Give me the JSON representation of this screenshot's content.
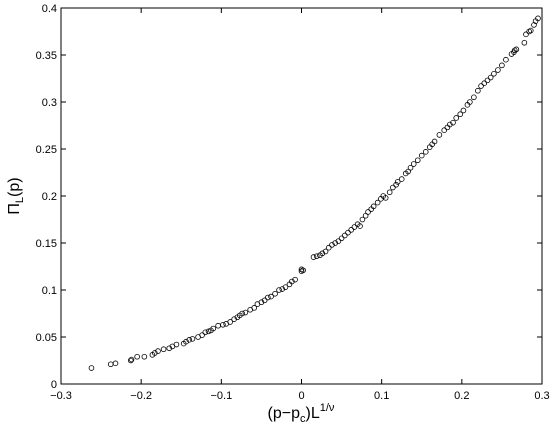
{
  "chart_data": {
    "type": "scatter",
    "xlabel": {
      "main": "(p−p",
      "sub": "c",
      "mid": ")L",
      "sup": "1/ν"
    },
    "ylabel": {
      "main": "Π",
      "sub": "L",
      "tail": "(p)"
    },
    "xlim": [
      -0.3,
      0.3
    ],
    "ylim": [
      0,
      0.4
    ],
    "xticks": [
      -0.3,
      -0.2,
      -0.1,
      0,
      0.1,
      0.2,
      0.3
    ],
    "xtick_labels": [
      "−0.3",
      "−0.2",
      "−0.1",
      "0",
      "0.1",
      "0.2",
      "0.3"
    ],
    "yticks": [
      0,
      0.05,
      0.1,
      0.15,
      0.2,
      0.25,
      0.3,
      0.35,
      0.4
    ],
    "ytick_labels": [
      "0",
      "0.05",
      "0.1",
      "0.15",
      "0.2",
      "0.25",
      "0.3",
      "0.35",
      "0.4"
    ],
    "grid": false,
    "marker": "open-circle",
    "points": [
      [
        -0.262,
        0.017
      ],
      [
        -0.238,
        0.021
      ],
      [
        -0.232,
        0.022
      ],
      [
        -0.213,
        0.025
      ],
      [
        -0.212,
        0.026
      ],
      [
        -0.205,
        0.029
      ],
      [
        -0.196,
        0.029
      ],
      [
        -0.186,
        0.031
      ],
      [
        -0.183,
        0.033
      ],
      [
        -0.179,
        0.035
      ],
      [
        -0.172,
        0.037
      ],
      [
        -0.165,
        0.038
      ],
      [
        -0.161,
        0.04
      ],
      [
        -0.156,
        0.042
      ],
      [
        -0.147,
        0.043
      ],
      [
        -0.144,
        0.045
      ],
      [
        -0.14,
        0.047
      ],
      [
        -0.136,
        0.048
      ],
      [
        -0.129,
        0.05
      ],
      [
        -0.124,
        0.052
      ],
      [
        -0.12,
        0.055
      ],
      [
        -0.116,
        0.056
      ],
      [
        -0.113,
        0.057
      ],
      [
        -0.11,
        0.059
      ],
      [
        -0.104,
        0.062
      ],
      [
        -0.098,
        0.063
      ],
      [
        -0.094,
        0.064
      ],
      [
        -0.089,
        0.066
      ],
      [
        -0.084,
        0.069
      ],
      [
        -0.08,
        0.071
      ],
      [
        -0.077,
        0.073
      ],
      [
        -0.074,
        0.075
      ],
      [
        -0.07,
        0.076
      ],
      [
        -0.064,
        0.079
      ],
      [
        -0.059,
        0.081
      ],
      [
        -0.055,
        0.085
      ],
      [
        -0.05,
        0.087
      ],
      [
        -0.046,
        0.089
      ],
      [
        -0.042,
        0.092
      ],
      [
        -0.038,
        0.093
      ],
      [
        -0.033,
        0.096
      ],
      [
        -0.028,
        0.1
      ],
      [
        -0.024,
        0.101
      ],
      [
        -0.02,
        0.103
      ],
      [
        -0.015,
        0.106
      ],
      [
        -0.012,
        0.109
      ],
      [
        -0.008,
        0.111
      ],
      [
        0.0,
        0.12
      ],
      [
        0.0,
        0.122
      ],
      [
        0.002,
        0.121
      ],
      [
        0.015,
        0.135
      ],
      [
        0.019,
        0.136
      ],
      [
        0.023,
        0.137
      ],
      [
        0.026,
        0.139
      ],
      [
        0.03,
        0.141
      ],
      [
        0.034,
        0.145
      ],
      [
        0.038,
        0.148
      ],
      [
        0.042,
        0.15
      ],
      [
        0.046,
        0.152
      ],
      [
        0.05,
        0.155
      ],
      [
        0.054,
        0.158
      ],
      [
        0.058,
        0.161
      ],
      [
        0.062,
        0.164
      ],
      [
        0.066,
        0.167
      ],
      [
        0.07,
        0.17
      ],
      [
        0.073,
        0.168
      ],
      [
        0.076,
        0.175
      ],
      [
        0.08,
        0.179
      ],
      [
        0.083,
        0.183
      ],
      [
        0.087,
        0.186
      ],
      [
        0.09,
        0.189
      ],
      [
        0.095,
        0.193
      ],
      [
        0.099,
        0.197
      ],
      [
        0.102,
        0.2
      ],
      [
        0.105,
        0.198
      ],
      [
        0.11,
        0.204
      ],
      [
        0.114,
        0.209
      ],
      [
        0.118,
        0.212
      ],
      [
        0.12,
        0.215
      ],
      [
        0.125,
        0.218
      ],
      [
        0.13,
        0.224
      ],
      [
        0.133,
        0.226
      ],
      [
        0.136,
        0.23
      ],
      [
        0.14,
        0.234
      ],
      [
        0.145,
        0.238
      ],
      [
        0.15,
        0.243
      ],
      [
        0.155,
        0.247
      ],
      [
        0.16,
        0.252
      ],
      [
        0.163,
        0.255
      ],
      [
        0.166,
        0.258
      ],
      [
        0.172,
        0.265
      ],
      [
        0.178,
        0.27
      ],
      [
        0.182,
        0.273
      ],
      [
        0.185,
        0.276
      ],
      [
        0.189,
        0.278
      ],
      [
        0.193,
        0.283
      ],
      [
        0.198,
        0.287
      ],
      [
        0.202,
        0.291
      ],
      [
        0.207,
        0.297
      ],
      [
        0.21,
        0.3
      ],
      [
        0.215,
        0.305
      ],
      [
        0.22,
        0.312
      ],
      [
        0.224,
        0.317
      ],
      [
        0.228,
        0.32
      ],
      [
        0.232,
        0.323
      ],
      [
        0.236,
        0.326
      ],
      [
        0.24,
        0.33
      ],
      [
        0.245,
        0.334
      ],
      [
        0.25,
        0.339
      ],
      [
        0.255,
        0.345
      ],
      [
        0.262,
        0.351
      ],
      [
        0.265,
        0.353
      ],
      [
        0.266,
        0.355
      ],
      [
        0.268,
        0.356
      ],
      [
        0.278,
        0.363
      ],
      [
        0.28,
        0.372
      ],
      [
        0.284,
        0.375
      ],
      [
        0.286,
        0.376
      ],
      [
        0.29,
        0.382
      ],
      [
        0.292,
        0.386
      ],
      [
        0.295,
        0.389
      ]
    ]
  }
}
